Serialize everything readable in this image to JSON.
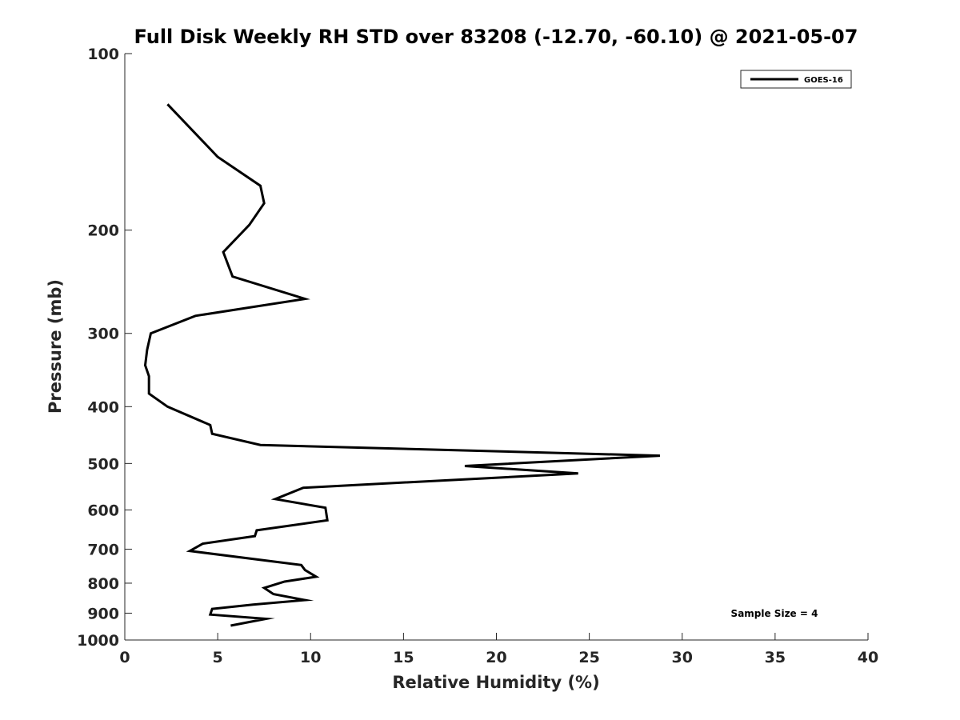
{
  "chart_data": {
    "type": "line",
    "title": "Full Disk Weekly RH STD over 83208 (-12.70, -60.10) @ 2021-05-07",
    "xlabel": "Relative Humidity (%)",
    "ylabel": "Pressure (mb)",
    "xlim": [
      0,
      40
    ],
    "ylim": [
      100,
      1000
    ],
    "y_scale": "log",
    "y_reversed": true,
    "x_ticks": [
      0,
      5,
      10,
      15,
      20,
      25,
      30,
      35,
      40
    ],
    "x_tick_labels": [
      "0",
      "5",
      "10",
      "15",
      "20",
      "25",
      "30",
      "35",
      "40"
    ],
    "y_ticks": [
      100,
      200,
      300,
      400,
      500,
      600,
      700,
      800,
      900,
      1000
    ],
    "y_tick_labels": [
      "100",
      "200",
      "300",
      "400",
      "500",
      "600",
      "700",
      "800",
      "900",
      "1000"
    ],
    "grid": false,
    "legend_position": "top-right",
    "annotation": "Sample Size = 4",
    "series": [
      {
        "name": "GOES-16",
        "color": "#000000",
        "x": [
          2.3,
          5.0,
          7.3,
          7.5,
          6.7,
          5.3,
          5.8,
          9.7,
          3.8,
          1.4,
          1.2,
          1.1,
          1.3,
          1.3,
          2.3,
          4.6,
          4.7,
          7.3,
          28.8,
          18.3,
          24.4,
          9.6,
          8.1,
          10.8,
          10.9,
          7.1,
          7.0,
          4.2,
          3.5,
          9.5,
          9.7,
          10.3,
          8.6,
          7.5,
          8.0,
          9.7,
          6.9,
          4.7,
          4.6,
          7.6,
          5.7
        ],
        "y": [
          122,
          150,
          168,
          180,
          196,
          218,
          240,
          262,
          280,
          300,
          320,
          340,
          355,
          380,
          400,
          430,
          445,
          465,
          485,
          505,
          520,
          550,
          575,
          595,
          625,
          650,
          665,
          685,
          705,
          745,
          760,
          780,
          795,
          815,
          835,
          855,
          870,
          885,
          905,
          920,
          945
        ]
      }
    ]
  }
}
